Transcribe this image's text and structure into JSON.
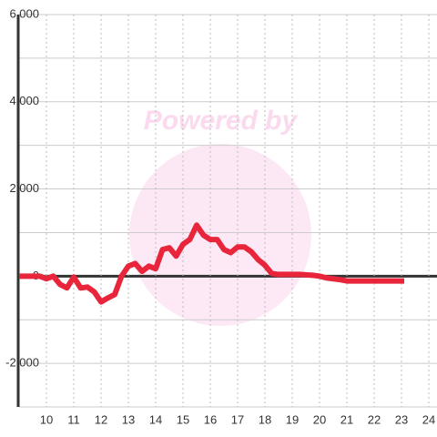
{
  "chart_data": {
    "type": "line",
    "watermark": "Powered by",
    "x": [
      9,
      9.75,
      10,
      10.25,
      10.5,
      10.75,
      11,
      11.25,
      11.5,
      11.75,
      12,
      12.25,
      12.5,
      12.75,
      13,
      13.25,
      13.5,
      13.75,
      14,
      14.25,
      14.5,
      14.75,
      15,
      15.25,
      15.5,
      15.75,
      16,
      16.25,
      16.5,
      16.75,
      17,
      17.25,
      17.5,
      17.75,
      18,
      18.25,
      18.5,
      18.75,
      19.25,
      19.75,
      20,
      20.25,
      20.75,
      21,
      23.1
    ],
    "series": [
      {
        "color": "#e8253a",
        "values": [
          0,
          0,
          -60,
          0,
          -190,
          -270,
          -20,
          -270,
          -250,
          -360,
          -590,
          -500,
          -420,
          0,
          230,
          290,
          110,
          230,
          170,
          610,
          650,
          460,
          730,
          840,
          1170,
          940,
          840,
          840,
          610,
          540,
          670,
          670,
          560,
          380,
          250,
          60,
          40,
          40,
          40,
          20,
          0,
          -40,
          -80,
          -110,
          -110
        ]
      }
    ],
    "xlim": [
      9,
      24.3
    ],
    "ylim": [
      -3000,
      6000
    ],
    "xticks": [
      10,
      11,
      12,
      13,
      14,
      15,
      16,
      17,
      18,
      19,
      20,
      21,
      22,
      23,
      24
    ],
    "yticks": [
      {
        "value": -2000,
        "label": "-2,000"
      },
      0,
      {
        "value": 2000,
        "label": "2,000"
      },
      {
        "value": 4000,
        "label": "4,000"
      },
      {
        "value": 6000,
        "label": "6,000"
      }
    ],
    "minor_yticks": [
      -3000,
      -1000,
      1000,
      3000,
      5000
    ],
    "grid": true
  }
}
